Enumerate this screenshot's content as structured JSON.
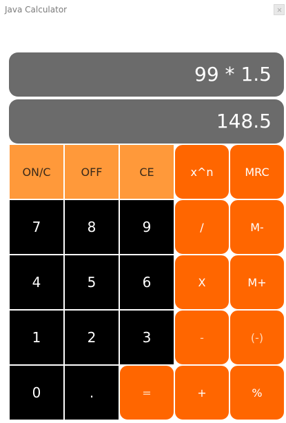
{
  "window": {
    "title": "Java Calculator"
  },
  "display": {
    "expression": "99 * 1.5",
    "result": "148.5"
  },
  "keys": {
    "on_c": "ON/C",
    "off": "OFF",
    "ce": "CE",
    "power": "x^n",
    "mrc": "MRC",
    "seven": "7",
    "eight": "8",
    "nine": "9",
    "divide": "/",
    "m_minus": "M-",
    "four": "4",
    "five": "5",
    "six": "6",
    "multiply": "X",
    "m_plus": "M+",
    "one": "1",
    "two": "2",
    "three": "3",
    "minus": "-",
    "negate": "(-)",
    "zero": "0",
    "decimal": ".",
    "equals": "=",
    "plus": "+",
    "percent": "%"
  },
  "colors": {
    "function_key": "#ff993a",
    "operator_key": "#ff6600",
    "number_key": "#000000",
    "display_bg": "#6b6b6b"
  }
}
